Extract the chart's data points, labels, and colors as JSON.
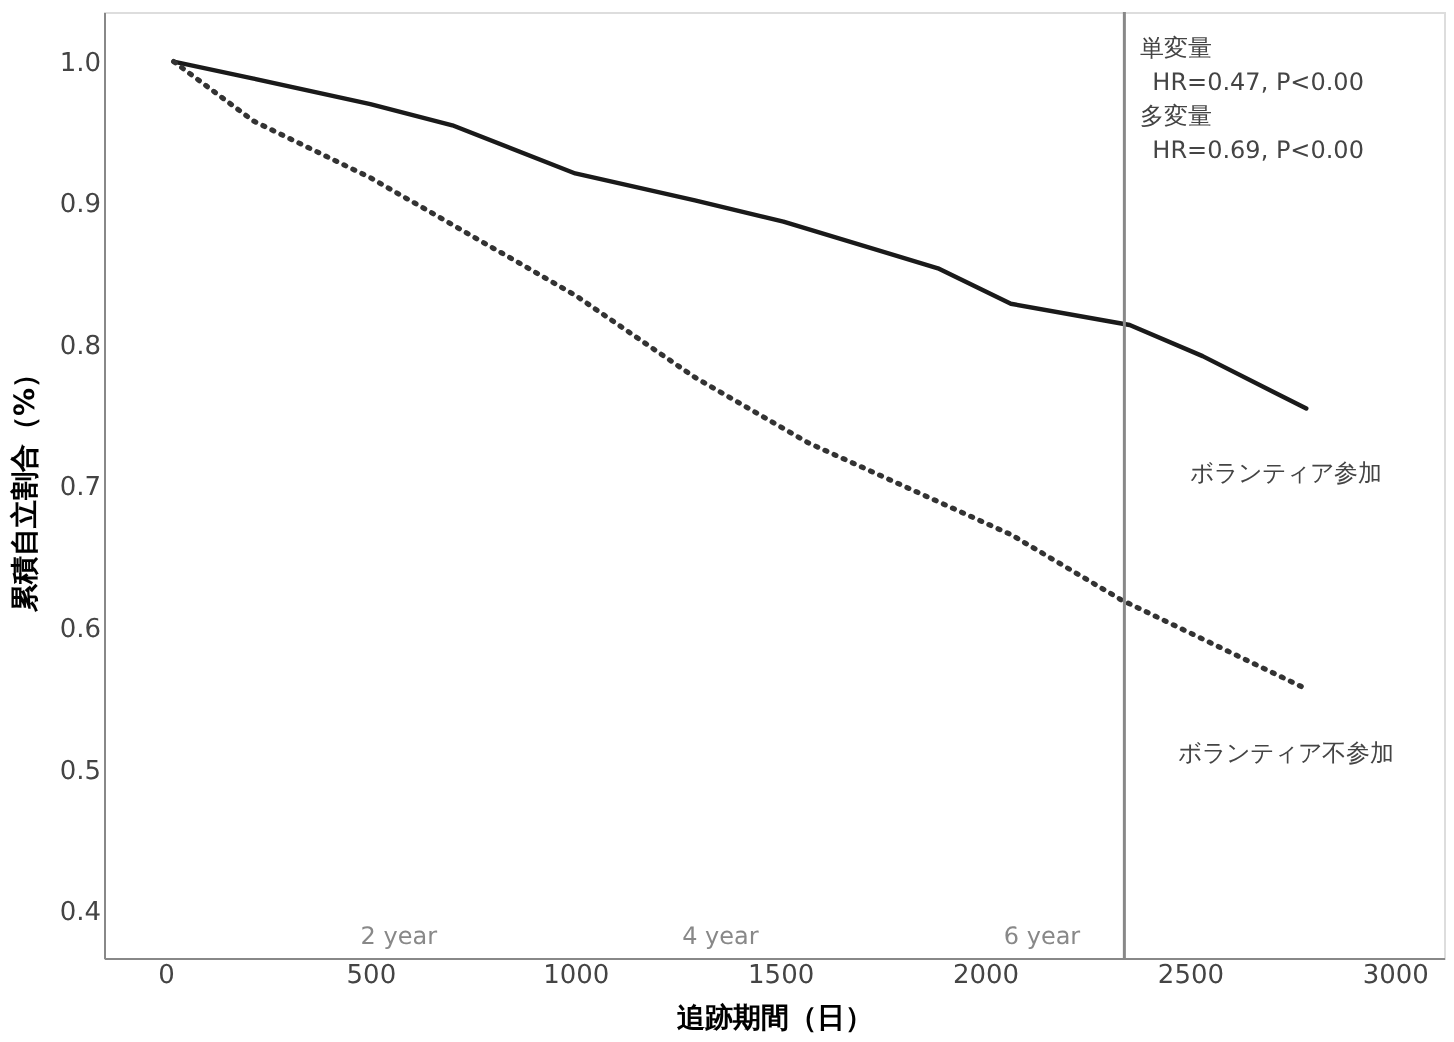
{
  "chart_data": {
    "type": "line",
    "xlabel": "追跡期間（日）",
    "ylabel": "累積自立割合（%）",
    "xlim": [
      -150,
      3120
    ],
    "ylim": [
      0.367,
      1.035
    ],
    "xticks": [
      0,
      500,
      1000,
      1500,
      2000,
      2500,
      3000
    ],
    "yticks": [
      0.4,
      0.5,
      0.6,
      0.7,
      0.8,
      0.9,
      {
        "value": 1.0,
        "label": "1.0"
      }
    ],
    "grid": false,
    "marker": "none",
    "series": [
      {
        "name": "ボランティア参加",
        "color": "#1a1a1a",
        "line_style": "solid",
        "x": [
          20,
          215,
          500,
          700,
          1000,
          1292,
          1508,
          1885,
          2063,
          2353,
          2531,
          2784
        ],
        "values": [
          1.0,
          0.988,
          0.97,
          0.955,
          0.921,
          0.902,
          0.887,
          0.854,
          0.829,
          0.814,
          0.792,
          0.755
        ]
      },
      {
        "name": "ボランティア不参加",
        "color": "#333333",
        "line_style": "dotted",
        "x": [
          20,
          215,
          500,
          1000,
          1292,
          1567,
          2063,
          2332,
          2784
        ],
        "values": [
          1.0,
          0.958,
          0.918,
          0.835,
          0.777,
          0.731,
          0.666,
          0.62,
          0.557
        ]
      }
    ],
    "ref_lines": [
      {
        "axis": "x",
        "value": 2340,
        "color": "#888888"
      }
    ],
    "annotations": [
      "単変量",
      "HR=0.47, P<0.00",
      "多変量",
      "HR=0.69, P<0.00",
      "2 year",
      "4 year",
      "6 year"
    ]
  }
}
